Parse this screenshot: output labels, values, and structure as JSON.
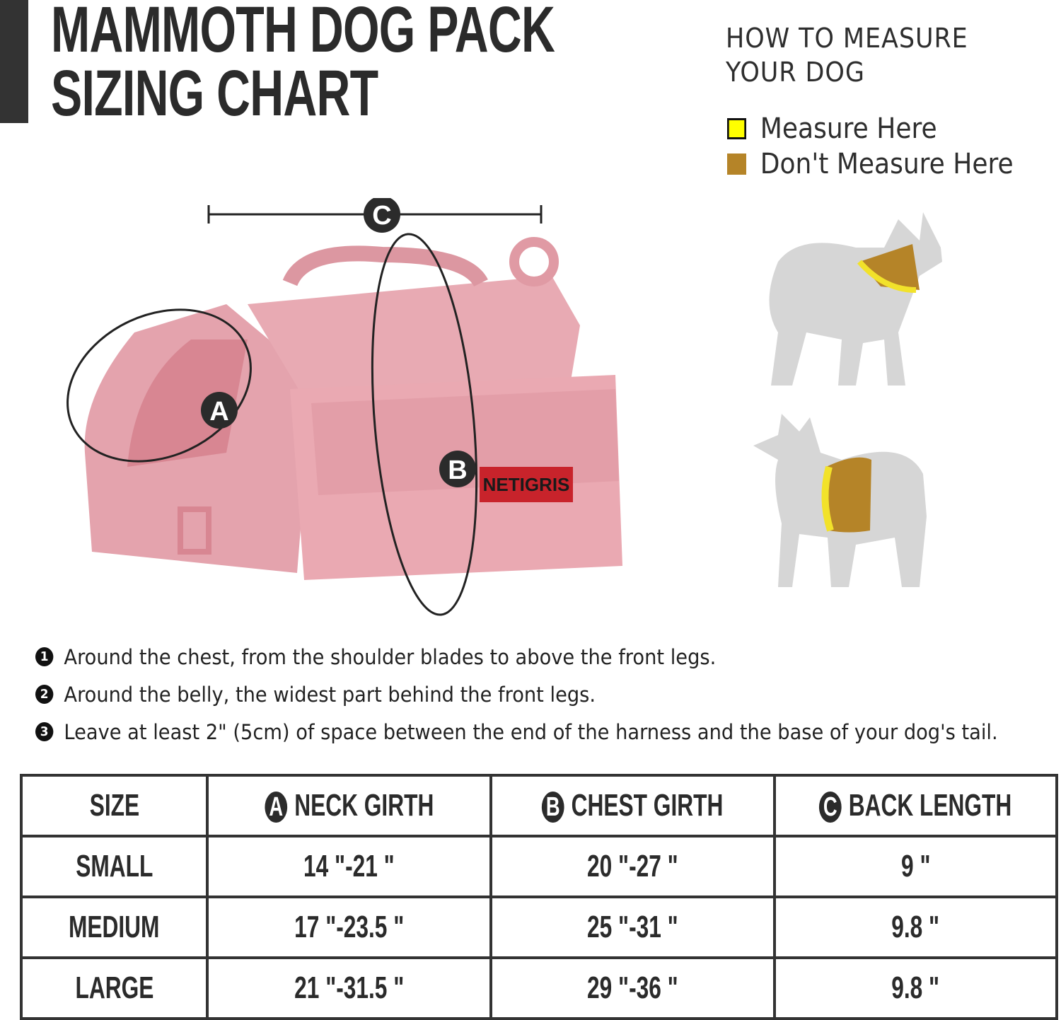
{
  "header": {
    "title_line1": "MAMMOTH DOG PACK",
    "title_line2": "SIZING CHART"
  },
  "howto": {
    "title_line1": "HOW TO MEASURE",
    "title_line2": "YOUR DOG",
    "legend": [
      {
        "label": "Measure Here",
        "color": "#ffff00"
      },
      {
        "label": "Don't Measure Here",
        "color": "#b58428"
      }
    ]
  },
  "product": {
    "brand_logo": "NETIGRIS",
    "markers": [
      "A",
      "B",
      "C"
    ],
    "color": "#e8a6b0"
  },
  "notes": [
    {
      "num": "1",
      "text": "Around the chest, from the shoulder blades to above the front legs."
    },
    {
      "num": "2",
      "text": "Around the belly, the widest part behind the front legs."
    },
    {
      "num": "3",
      "text": "Leave at least 2\" (5cm) of space between the end of the harness and  the base of your dog's tail."
    }
  ],
  "table": {
    "headers": [
      {
        "marker": "",
        "label": "SIZE"
      },
      {
        "marker": "A",
        "label": "NECK GIRTH"
      },
      {
        "marker": "B",
        "label": "CHEST GIRTH"
      },
      {
        "marker": "C",
        "label": "BACK LENGTH"
      }
    ],
    "rows": [
      [
        "SMALL",
        "14 \"-21 \"",
        "20 \"-27 \"",
        "9 \""
      ],
      [
        "MEDIUM",
        "17 \"-23.5 \"",
        "25 \"-31 \"",
        "9.8 \""
      ],
      [
        "LARGE",
        "21 \"-31.5 \"",
        "29 \"-36 \"",
        "9.8 \""
      ]
    ]
  }
}
